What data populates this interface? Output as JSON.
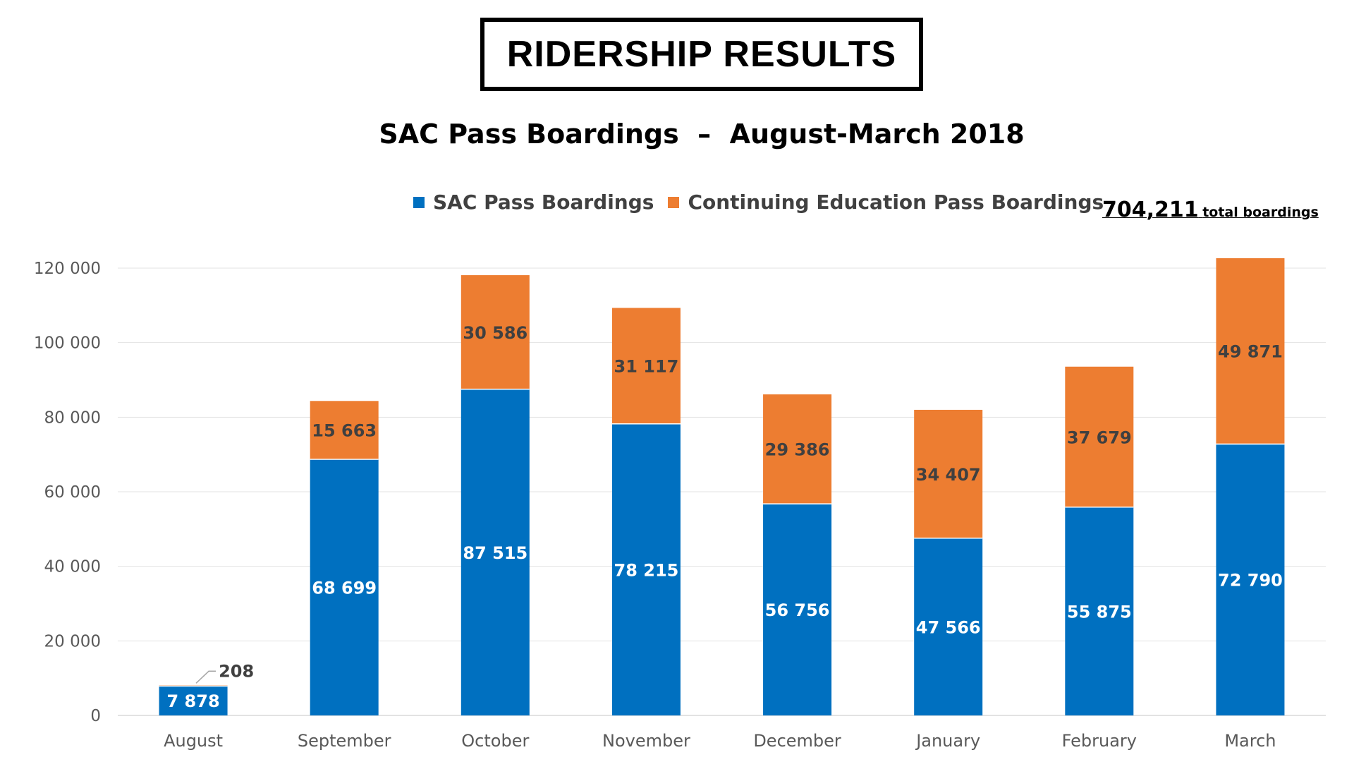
{
  "page": {
    "heading": "RIDERSHIP RESULTS"
  },
  "chart_data": {
    "type": "bar",
    "stacked": true,
    "title": "SAC Pass Boardings  –  August-March 2018",
    "xlabel": "",
    "ylabel": "",
    "ylim": [
      0,
      120000
    ],
    "yticks": [
      0,
      20000,
      40000,
      60000,
      80000,
      100000,
      120000
    ],
    "ytick_labels": [
      "0",
      "20 000",
      "40 000",
      "60 000",
      "80 000",
      "100 000",
      "120 000"
    ],
    "grid": true,
    "legend_placement": "top",
    "categories": [
      "August",
      "September",
      "October",
      "November",
      "December",
      "January",
      "February",
      "March"
    ],
    "series": [
      {
        "name": "SAC Pass Boardings",
        "color": "#0070C0",
        "values": [
          7878,
          68699,
          87515,
          78215,
          56756,
          47566,
          55875,
          72790
        ],
        "labels": [
          "7 878",
          "68 699",
          "87 515",
          "78 215",
          "56 756",
          "47 566",
          "55 875",
          "72 790"
        ]
      },
      {
        "name": "Continuing Education Pass Boardings",
        "color": "#ED7D31",
        "values": [
          208,
          15663,
          30586,
          31117,
          29386,
          34407,
          37679,
          49871
        ],
        "labels": [
          "208",
          "15 663",
          "30 586",
          "31 117",
          "29 386",
          "34 407",
          "37 679",
          "49 871"
        ]
      }
    ],
    "annotation": {
      "total_value": "704,211",
      "total_label": "total boardings"
    }
  }
}
